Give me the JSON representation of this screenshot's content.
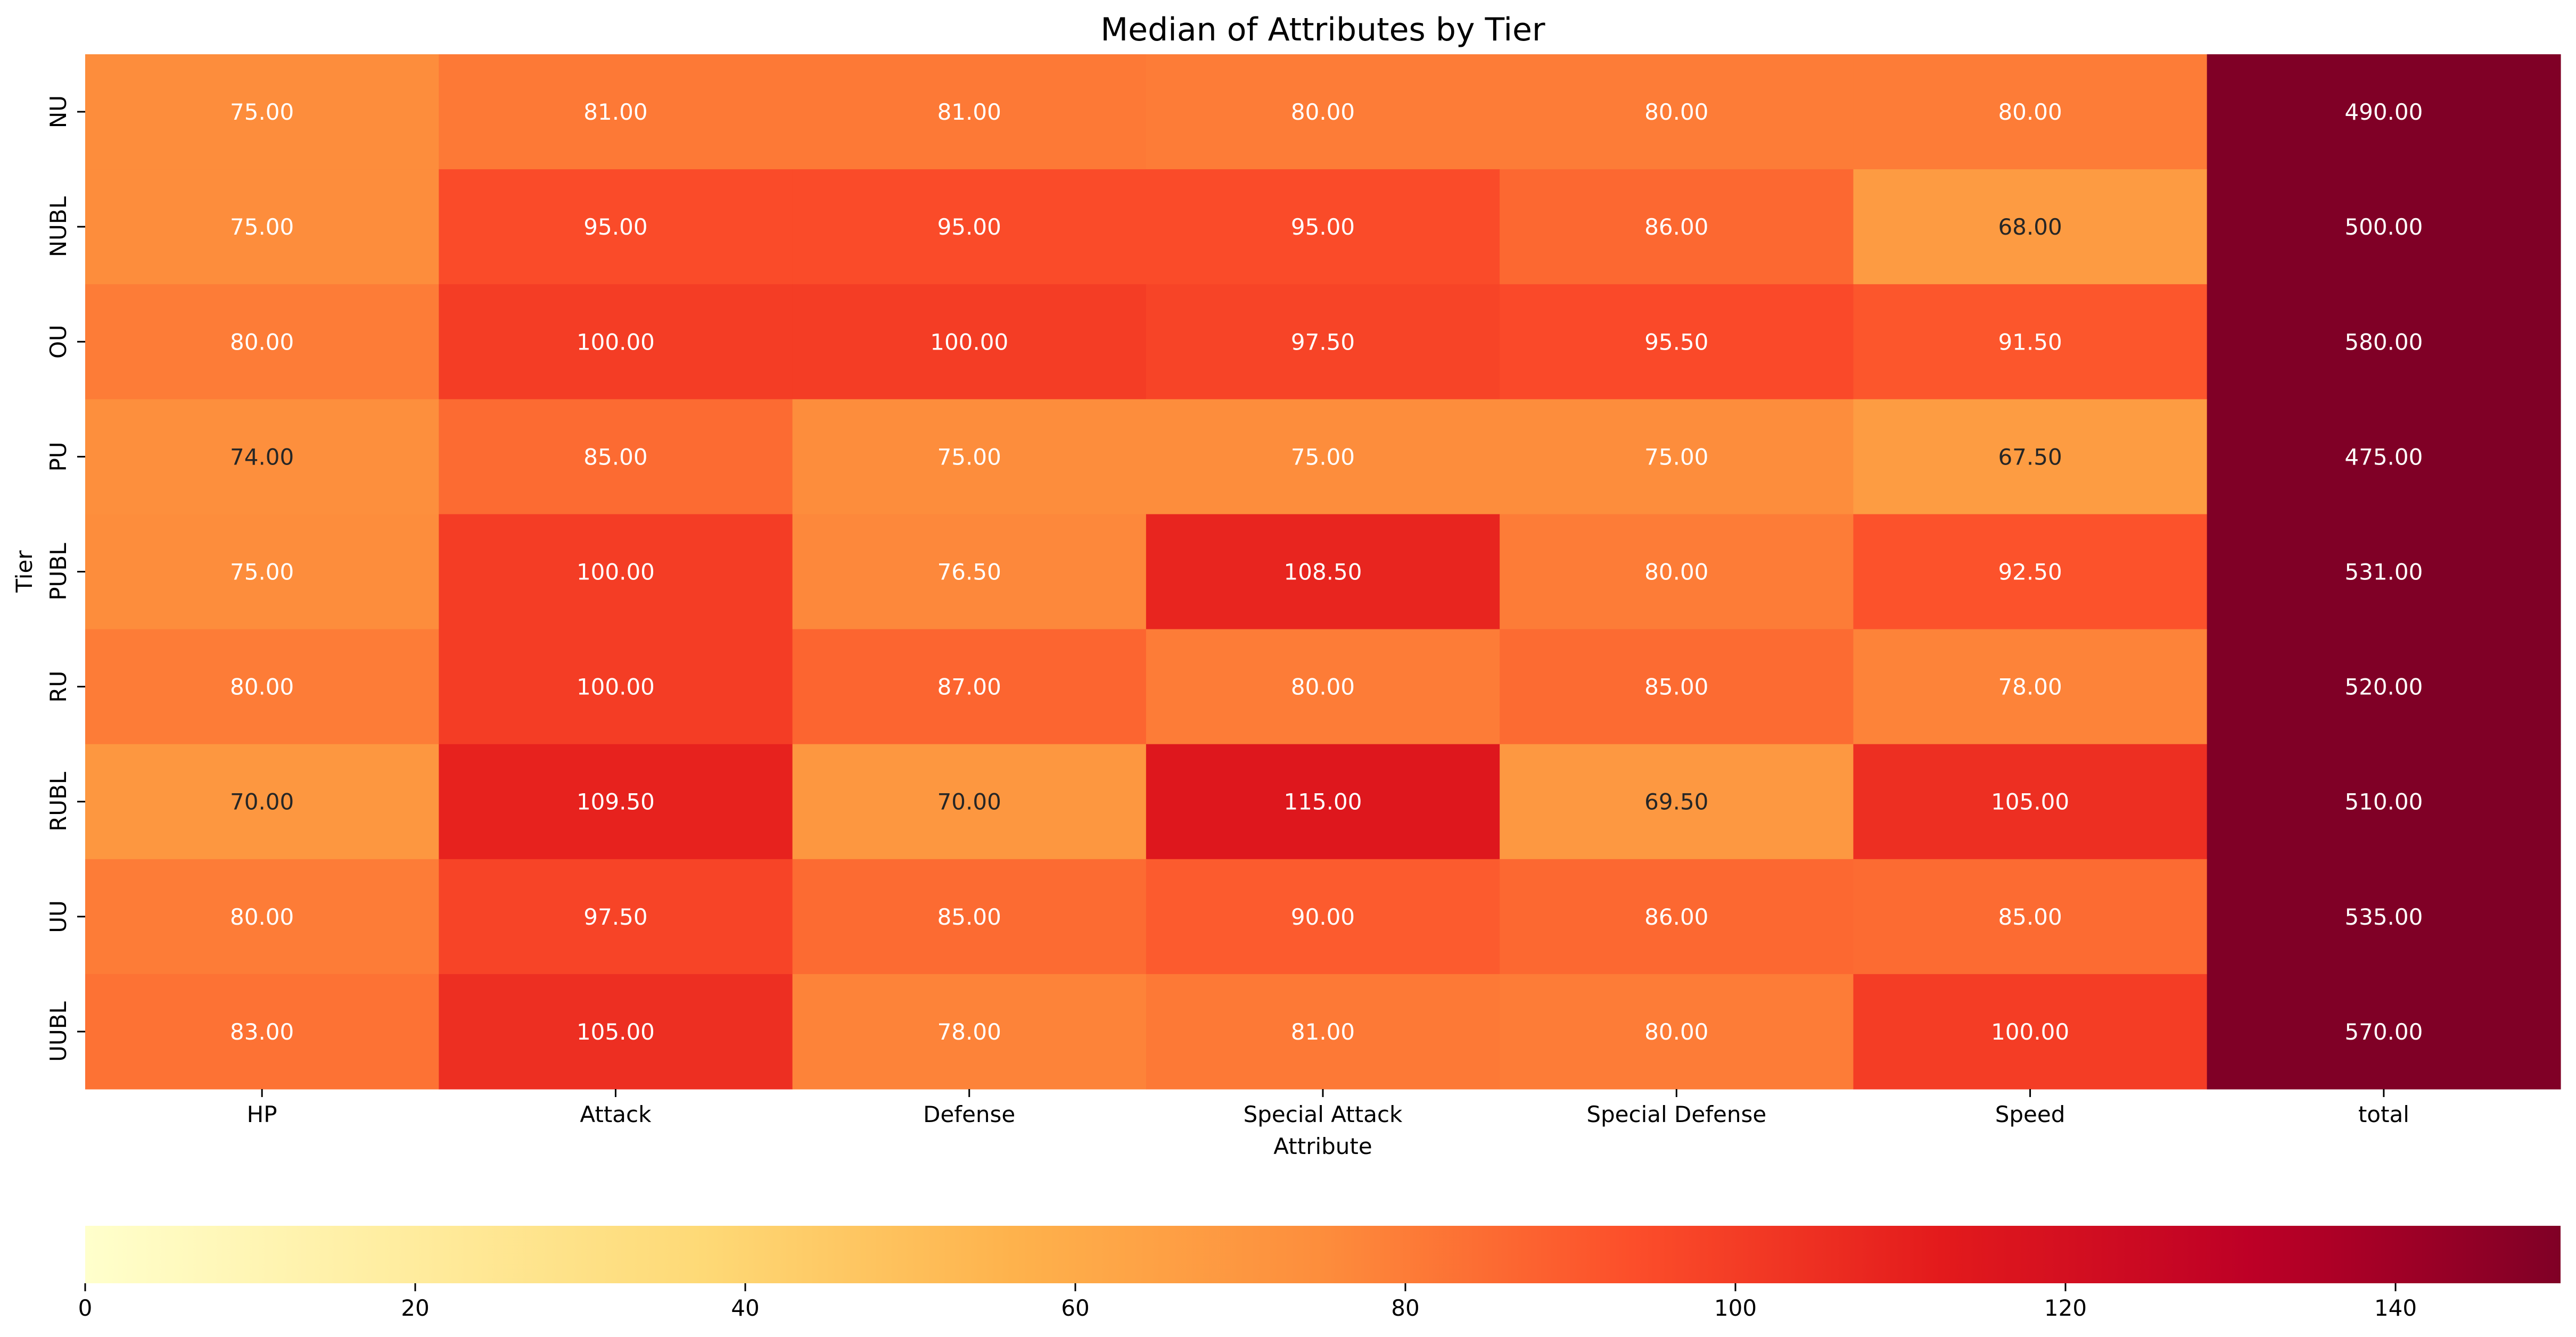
{
  "chart_data": {
    "type": "heatmap",
    "title": "Median of Attributes by Tier",
    "xlabel": "Attribute",
    "ylabel": "Tier",
    "colormap": "YlOrRd",
    "colormap_stops": [
      "#ffffcc",
      "#ffeda0",
      "#fed976",
      "#feb24c",
      "#fd8d3c",
      "#fc4e2a",
      "#e31a1c",
      "#bd0026",
      "#800026"
    ],
    "text_color_light": "#ffffff",
    "text_color_dark": "#262626",
    "vmin": 0,
    "vmax": 150,
    "annotation_format": "2 decimals",
    "columns": [
      "HP",
      "Attack",
      "Defense",
      "Special Attack",
      "Special Defense",
      "Speed",
      "total"
    ],
    "rows": [
      "NU",
      "NUBL",
      "OU",
      "PU",
      "PUBL",
      "RU",
      "RUBL",
      "UU",
      "UUBL"
    ],
    "values": [
      [
        75.0,
        81.0,
        81.0,
        80.0,
        80.0,
        80.0,
        490.0
      ],
      [
        75.0,
        95.0,
        95.0,
        95.0,
        86.0,
        68.0,
        500.0
      ],
      [
        80.0,
        100.0,
        100.0,
        97.5,
        95.5,
        91.5,
        580.0
      ],
      [
        74.0,
        85.0,
        75.0,
        75.0,
        75.0,
        67.5,
        475.0
      ],
      [
        75.0,
        100.0,
        76.5,
        108.5,
        80.0,
        92.5,
        531.0
      ],
      [
        80.0,
        100.0,
        87.0,
        80.0,
        85.0,
        78.0,
        520.0
      ],
      [
        70.0,
        109.5,
        70.0,
        115.0,
        69.5,
        105.0,
        510.0
      ],
      [
        80.0,
        97.5,
        85.0,
        90.0,
        86.0,
        85.0,
        535.0
      ],
      [
        83.0,
        105.0,
        78.0,
        81.0,
        80.0,
        100.0,
        570.0
      ]
    ],
    "colorbar": {
      "orientation": "horizontal",
      "placement": "bottom",
      "ticks": [
        0,
        20,
        40,
        60,
        80,
        100,
        120,
        140
      ]
    },
    "grid": false
  }
}
